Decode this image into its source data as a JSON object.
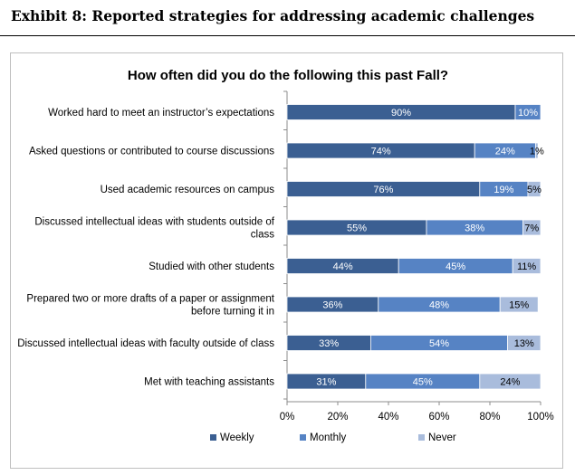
{
  "exhibit_title": "Exhibit 8: Reported strategies for addressing academic challenges",
  "chart_data": {
    "type": "bar",
    "orientation": "horizontal",
    "stacked": true,
    "title": "How often did you do the following this past Fall?",
    "categories": [
      [
        "Worked hard to meet an instructor’s expectations"
      ],
      [
        "Asked questions or contributed to course discussions"
      ],
      [
        "Used academic resources on campus"
      ],
      [
        "Discussed intellectual ideas with students outside of",
        "class"
      ],
      [
        "Studied with other students"
      ],
      [
        "Prepared two or more drafts of a paper or assignment",
        "before turning it in"
      ],
      [
        "Discussed intellectual ideas with faculty outside of class"
      ],
      [
        "Met with teaching assistants"
      ]
    ],
    "series": [
      {
        "name": "Weekly",
        "color": "#3b5f92",
        "values": [
          90,
          74,
          76,
          55,
          44,
          36,
          33,
          31
        ]
      },
      {
        "name": "Monthly",
        "color": "#5683c4",
        "values": [
          10,
          24,
          19,
          38,
          45,
          48,
          54,
          45
        ]
      },
      {
        "name": "Never",
        "color": "#a9bcdc",
        "values": [
          0,
          1,
          5,
          7,
          11,
          15,
          13,
          24
        ]
      }
    ],
    "value_labels": [
      [
        "90%",
        "10%",
        ""
      ],
      [
        "74%",
        "24%",
        "1%"
      ],
      [
        "76%",
        "19%",
        "5%"
      ],
      [
        "55%",
        "38%",
        "7%"
      ],
      [
        "44%",
        "45%",
        "11%"
      ],
      [
        "36%",
        "48%",
        "15%"
      ],
      [
        "33%",
        "54%",
        "13%"
      ],
      [
        "31%",
        "45%",
        "24%"
      ]
    ],
    "x_ticks": [
      "0%",
      "20%",
      "40%",
      "60%",
      "80%",
      "100%"
    ],
    "xlim": [
      0,
      100
    ],
    "grid": false,
    "legend_position": "bottom"
  }
}
